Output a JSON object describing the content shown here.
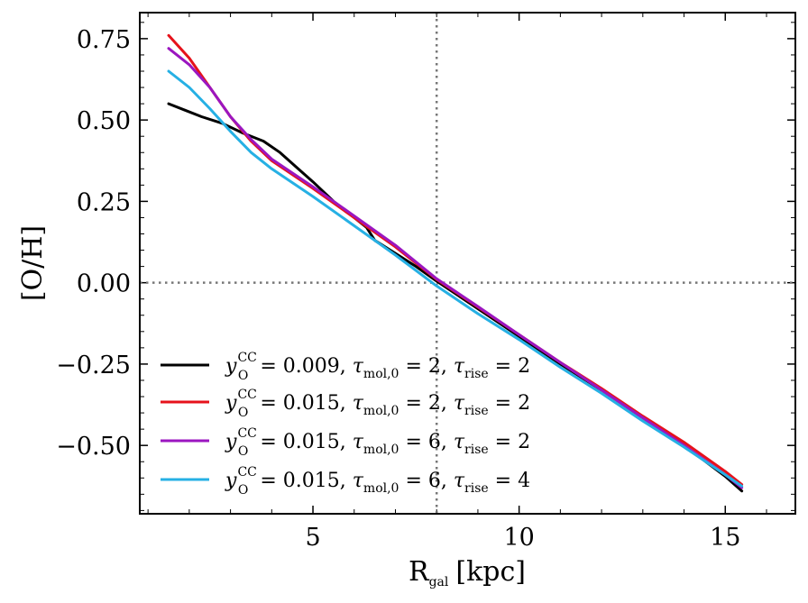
{
  "chart_data": {
    "type": "line",
    "title": "",
    "xlabel": "R_gal [kpc]",
    "xlabel_main": "R",
    "xlabel_sub": "gal",
    "xlabel_unit": "[kpc]",
    "ylabel": "[O/H]",
    "xlim": [
      0.8,
      16.7
    ],
    "ylim": [
      -0.71,
      0.83
    ],
    "xticks": [
      5,
      10,
      15
    ],
    "xtick_labels": [
      "5",
      "10",
      "15"
    ],
    "yticks": [
      0.75,
      0.5,
      0.25,
      0.0,
      -0.25,
      -0.5
    ],
    "ytick_labels": [
      "0.75",
      "0.50",
      "0.25",
      "0.00",
      "−0.25",
      "−0.50"
    ],
    "reference_lines": {
      "x": 8,
      "y": 0
    },
    "legend_position": "lower-left",
    "series": [
      {
        "name": "y_O^CC = 0.009, τ_mol,0 = 2, τ_rise = 2",
        "legend": {
          "y": "0.009",
          "tau_mol": "2",
          "tau_rise": "2"
        },
        "color": "#000000",
        "x": [
          1.5,
          1.9,
          2.3,
          2.8,
          3.3,
          3.8,
          4.2,
          4.6,
          5.0,
          5.5,
          6.0,
          6.3,
          6.5,
          7.0,
          7.5,
          8.0,
          9.0,
          10.0,
          11.0,
          12.0,
          13.0,
          14.0,
          15.0,
          15.4
        ],
        "y": [
          0.55,
          0.53,
          0.51,
          0.49,
          0.46,
          0.435,
          0.4,
          0.355,
          0.31,
          0.25,
          0.2,
          0.17,
          0.13,
          0.09,
          0.05,
          0.005,
          -0.08,
          -0.165,
          -0.25,
          -0.33,
          -0.415,
          -0.5,
          -0.595,
          -0.64
        ]
      },
      {
        "name": "y_O^CC = 0.015, τ_mol,0 = 2, τ_rise = 2",
        "legend": {
          "y": "0.015",
          "tau_mol": "2",
          "tau_rise": "2"
        },
        "color": "#e6121b",
        "x": [
          1.5,
          2.0,
          2.5,
          3.0,
          3.5,
          4.0,
          5.0,
          6.0,
          7.0,
          8.0,
          9.0,
          10.0,
          11.0,
          12.0,
          13.0,
          14.0,
          15.0,
          15.4
        ],
        "y": [
          0.76,
          0.69,
          0.6,
          0.51,
          0.435,
          0.375,
          0.29,
          0.2,
          0.11,
          0.01,
          -0.075,
          -0.16,
          -0.245,
          -0.325,
          -0.41,
          -0.49,
          -0.58,
          -0.62
        ]
      },
      {
        "name": "y_O^CC = 0.015, τ_mol,0 = 6, τ_rise = 2",
        "legend": {
          "y": "0.015",
          "tau_mol": "6",
          "tau_rise": "2"
        },
        "color": "#9b16c0",
        "x": [
          1.5,
          2.0,
          2.5,
          3.0,
          3.5,
          4.0,
          5.0,
          6.0,
          7.0,
          8.0,
          9.0,
          10.0,
          11.0,
          12.0,
          13.0,
          14.0,
          15.0,
          15.4
        ],
        "y": [
          0.72,
          0.67,
          0.6,
          0.51,
          0.44,
          0.38,
          0.295,
          0.205,
          0.115,
          0.012,
          -0.073,
          -0.16,
          -0.245,
          -0.33,
          -0.415,
          -0.5,
          -0.59,
          -0.63
        ]
      },
      {
        "name": "y_O^CC = 0.015, τ_mol,0 = 6, τ_rise = 4",
        "legend": {
          "y": "0.015",
          "tau_mol": "6",
          "tau_rise": "4"
        },
        "color": "#26b0e4",
        "x": [
          1.5,
          2.0,
          2.5,
          3.0,
          3.5,
          4.0,
          5.0,
          6.0,
          7.0,
          8.0,
          9.0,
          10.0,
          11.0,
          12.0,
          13.0,
          14.0,
          15.0,
          15.4
        ],
        "y": [
          0.65,
          0.6,
          0.535,
          0.465,
          0.4,
          0.35,
          0.265,
          0.175,
          0.085,
          -0.01,
          -0.095,
          -0.175,
          -0.26,
          -0.34,
          -0.425,
          -0.505,
          -0.59,
          -0.625
        ]
      }
    ]
  }
}
